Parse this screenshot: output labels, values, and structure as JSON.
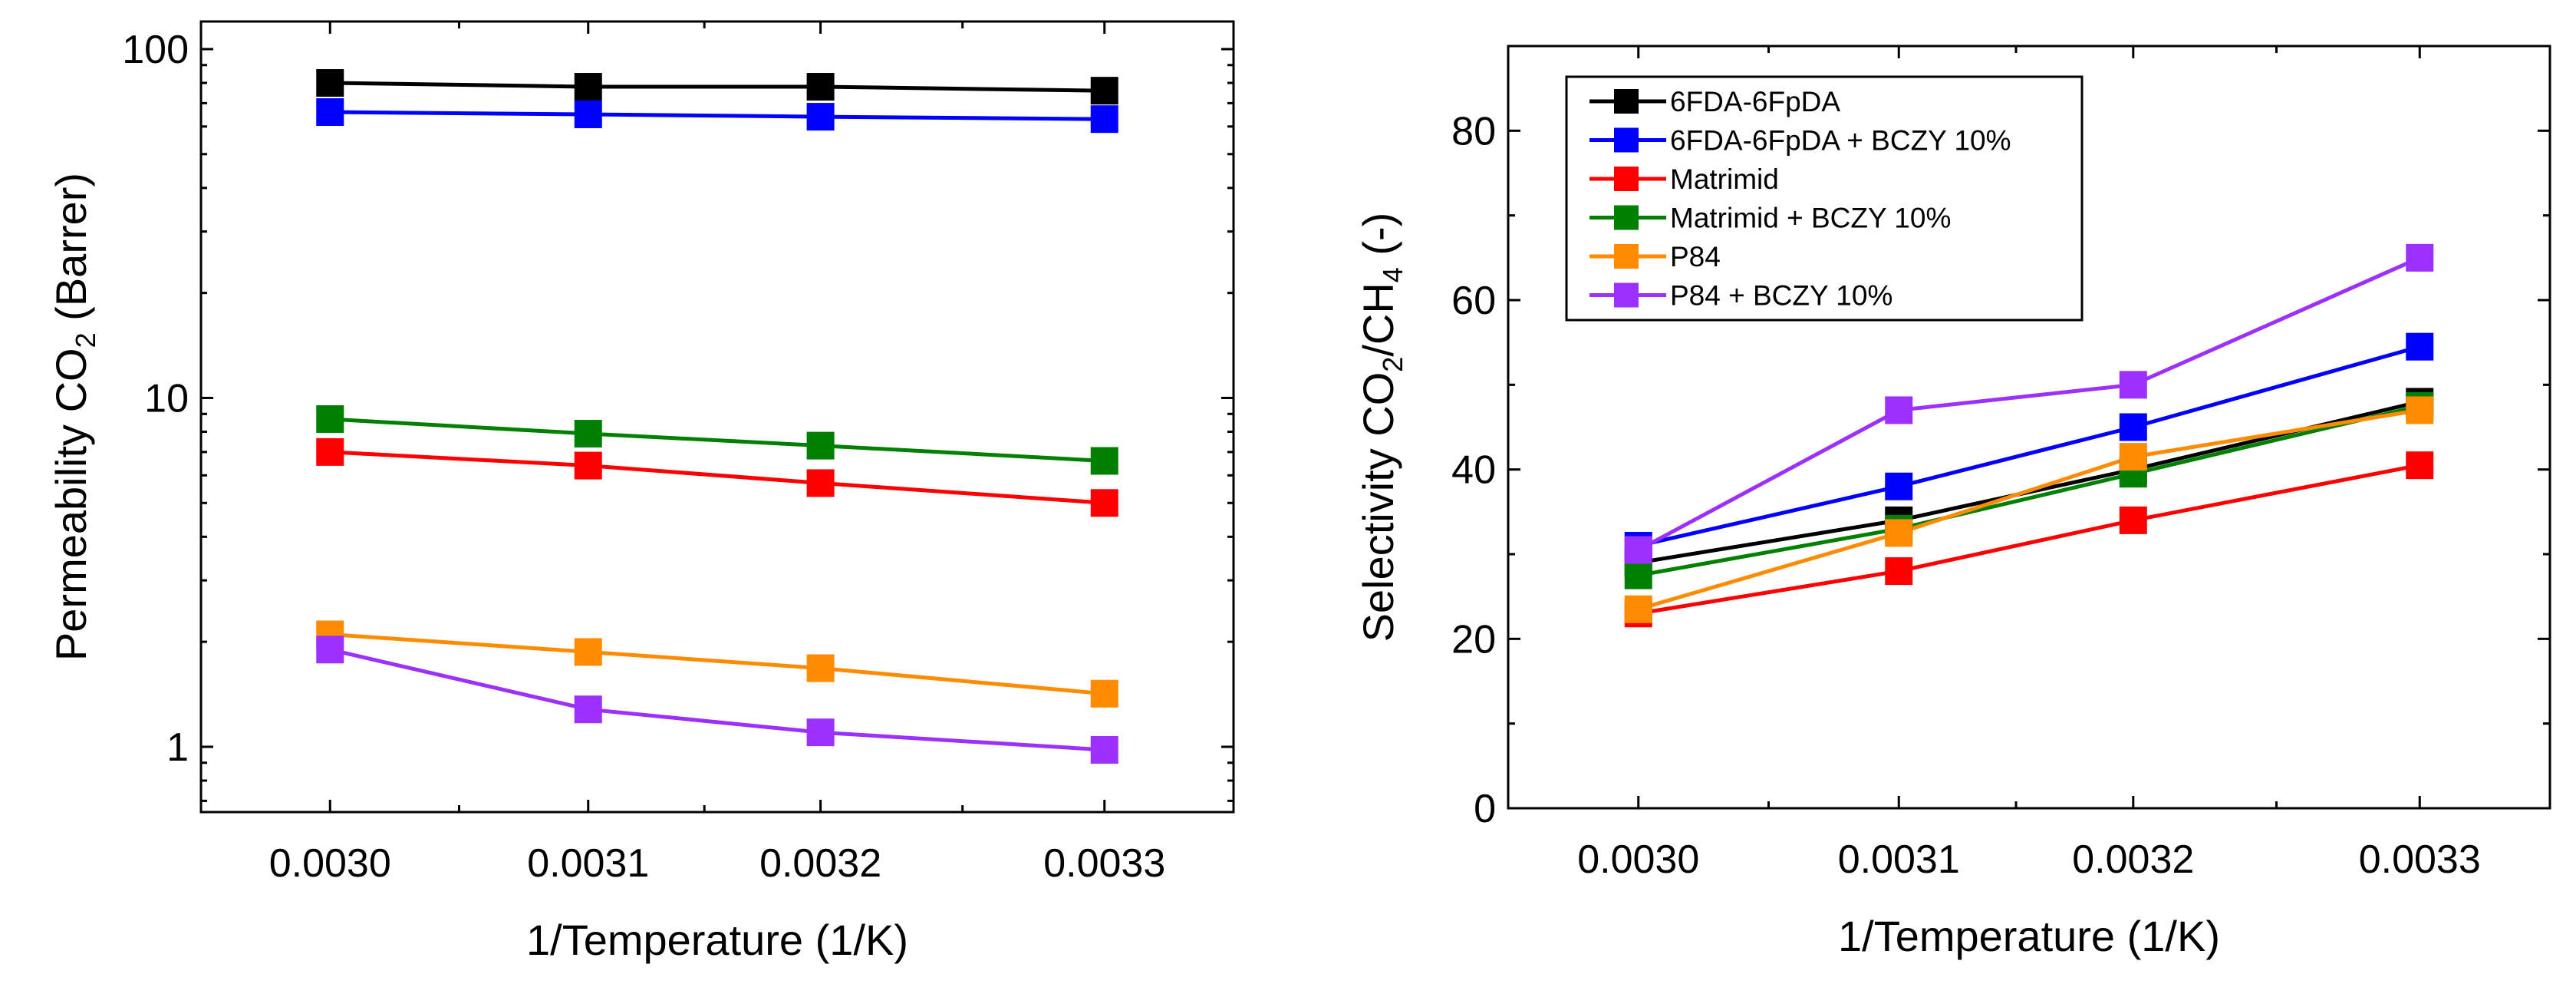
{
  "chart_data": [
    {
      "type": "line",
      "scale": "log",
      "x": [
        0.003,
        0.0031,
        0.00319,
        0.0033
      ],
      "xticks": [
        "0.0030",
        "0.0031",
        "0.0032",
        "0.0033"
      ],
      "xlim": [
        0.00295,
        0.00335
      ],
      "ylim": [
        0.65,
        120
      ],
      "yticks": [
        {
          "v": 1,
          "label": "1"
        },
        {
          "v": 10,
          "label": "10"
        },
        {
          "v": 100,
          "label": "100"
        }
      ],
      "xlabel": "1/Temperature (1/K)",
      "ylabel": {
        "main": "Permeability CO",
        "sub": "2",
        "tail": " (Barrer)"
      },
      "series": [
        {
          "name": "6FDA-6FpDA",
          "color": "#000000",
          "values": [
            80,
            78,
            78,
            76
          ]
        },
        {
          "name": "6FDA-6FpDA + BCZY 10%",
          "color": "#0000ff",
          "values": [
            66,
            65,
            64,
            63
          ]
        },
        {
          "name": "Matrimid + BCZY 10%",
          "color": "#008000",
          "values": [
            8.7,
            7.9,
            7.3,
            6.6
          ]
        },
        {
          "name": "Matrimid",
          "color": "#ff0000",
          "values": [
            7.0,
            6.4,
            5.7,
            5.0
          ]
        },
        {
          "name": "P84",
          "color": "#ff8c00",
          "values": [
            2.1,
            1.87,
            1.68,
            1.42
          ]
        },
        {
          "name": "P84 + BCZY 10%",
          "color": "#9b30ff",
          "values": [
            1.9,
            1.28,
            1.1,
            0.98
          ]
        }
      ]
    },
    {
      "type": "line",
      "scale": "linear",
      "x": [
        0.003,
        0.0031,
        0.00319,
        0.0033
      ],
      "xticks": [
        "0.0030",
        "0.0031",
        "0.0032",
        "0.0033"
      ],
      "xlim": [
        0.00295,
        0.00335
      ],
      "ylim": [
        0,
        90
      ],
      "yticks": [
        {
          "v": 0,
          "label": "0"
        },
        {
          "v": 20,
          "label": "20"
        },
        {
          "v": 40,
          "label": "40"
        },
        {
          "v": 60,
          "label": "60"
        },
        {
          "v": 80,
          "label": "80"
        }
      ],
      "xlabel": "1/Temperature (1/K)",
      "ylabel": {
        "main": "Selectivity CO",
        "sub": "2",
        "mid": "/CH",
        "sub2": "4",
        "tail": " (-)"
      },
      "legend_position": "top-left",
      "series": [
        {
          "name": "6FDA-6FpDA",
          "color": "#000000",
          "values": [
            29,
            34,
            40,
            48
          ]
        },
        {
          "name": "6FDA-6FpDA + BCZY 10%",
          "color": "#0000ff",
          "values": [
            31,
            38,
            45,
            54.5
          ]
        },
        {
          "name": "Matrimid",
          "color": "#ff0000",
          "values": [
            23,
            28,
            34,
            40.5
          ]
        },
        {
          "name": "Matrimid + BCZY 10%",
          "color": "#008000",
          "values": [
            27.5,
            33,
            39.5,
            47.5
          ]
        },
        {
          "name": "P84",
          "color": "#ff8c00",
          "values": [
            23.5,
            32.5,
            41.5,
            47
          ]
        },
        {
          "name": "P84 + BCZY 10%",
          "color": "#9b30ff",
          "values": [
            30.5,
            47,
            50,
            65
          ]
        }
      ]
    }
  ]
}
